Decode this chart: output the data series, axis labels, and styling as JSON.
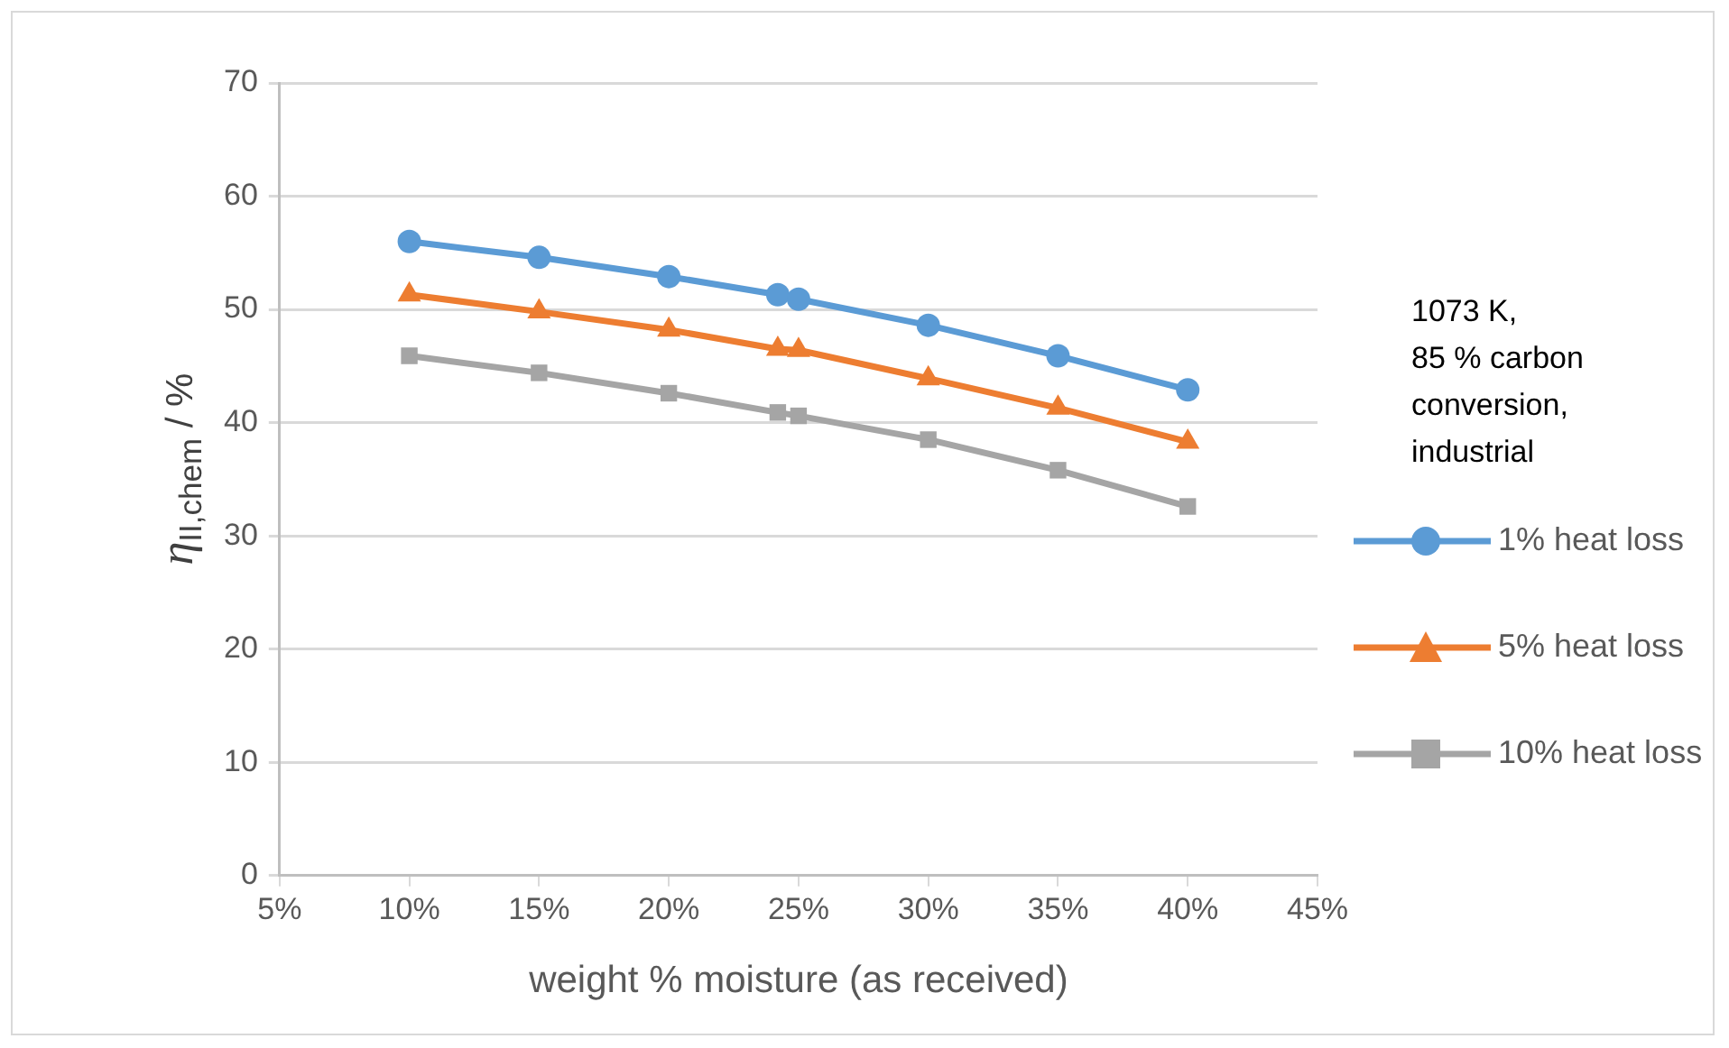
{
  "chart_data": {
    "type": "line",
    "xlabel": "weight % moisture (as received)",
    "ylabel": "η$_{II,chem}$ / %",
    "annotations": [
      "1073 K,\n85 % carbon\nconversion,\nindustrial"
    ],
    "x": [
      10,
      15,
      20,
      24.2,
      25,
      30,
      35,
      40
    ],
    "series": [
      {
        "name": "1% heat loss",
        "color": "#5b9bd5",
        "marker": "circle",
        "values": [
          56.0,
          54.6,
          52.9,
          51.3,
          50.9,
          48.6,
          45.9,
          42.9
        ]
      },
      {
        "name": "5% heat loss",
        "color": "#ed7d31",
        "marker": "triangle",
        "values": [
          51.3,
          49.8,
          48.2,
          46.5,
          46.4,
          43.9,
          41.3,
          38.3
        ]
      },
      {
        "name": "10% heat loss",
        "color": "#a5a5a5",
        "marker": "square",
        "values": [
          45.9,
          44.4,
          42.6,
          40.9,
          40.6,
          38.5,
          35.8,
          32.6
        ]
      }
    ],
    "xlim": [
      5,
      45
    ],
    "xticks": [
      {
        "value": 5,
        "label": "5%"
      },
      {
        "value": 10,
        "label": "10%"
      },
      {
        "value": 15,
        "label": "15%"
      },
      {
        "value": 20,
        "label": "20%"
      },
      {
        "value": 25,
        "label": "25%"
      },
      {
        "value": 30,
        "label": "30%"
      },
      {
        "value": 35,
        "label": "35%"
      },
      {
        "value": 40,
        "label": "40%"
      },
      {
        "value": 45,
        "label": "45%"
      }
    ],
    "ylim": [
      0,
      70
    ],
    "yticks": [
      0,
      10,
      20,
      30,
      40,
      50,
      60,
      70
    ],
    "grid": "y",
    "legend": "right",
    "line_style": "solid"
  }
}
